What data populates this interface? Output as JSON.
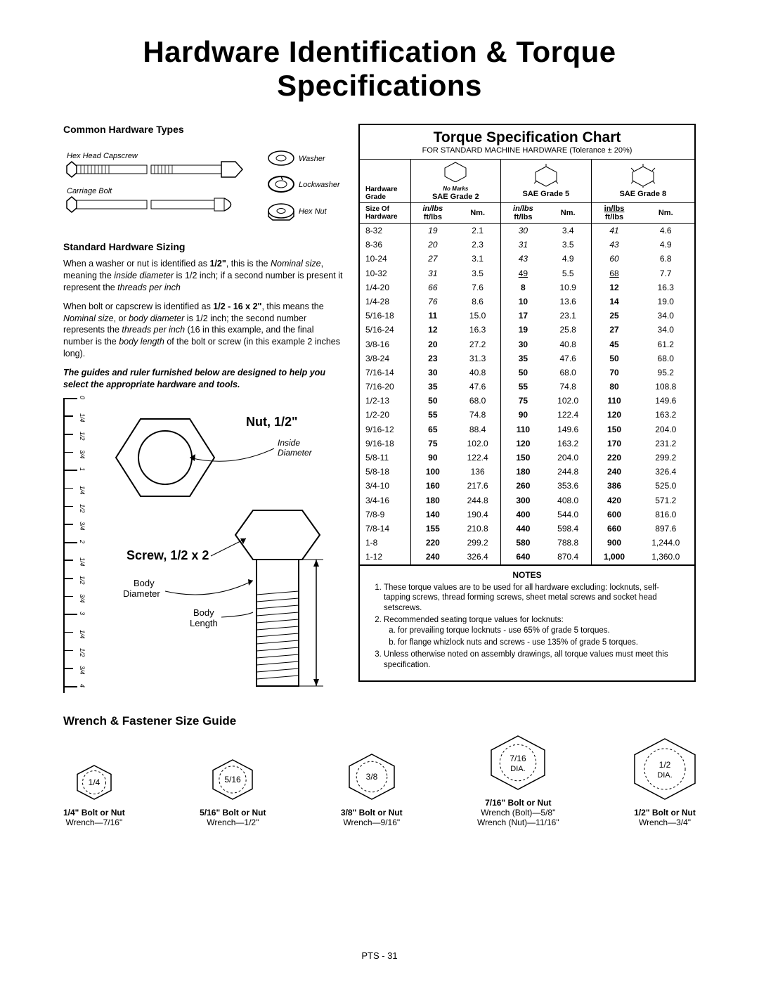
{
  "title": "Hardware Identification  &  Torque Specifications",
  "footer": "PTS - 31",
  "hwTypes": {
    "heading": "Common Hardware Types",
    "items": [
      "Hex Head Capscrew",
      "Carriage Bolt",
      "Washer",
      "Lockwasher",
      "Hex Nut"
    ]
  },
  "sizing": {
    "heading": "Standard Hardware Sizing",
    "p1_a": "When a washer or nut is identified as ",
    "p1_b": "1/2\"",
    "p1_c": ", this is the ",
    "p1_d": "Nominal size",
    "p1_e": ", meaning the ",
    "p1_f": "inside diameter",
    "p1_g": " is 1/2 inch; if a second number is present it represent the ",
    "p1_h": "threads per inch",
    "p2_a": "When bolt or capscrew is identified as ",
    "p2_b": "1/2 - 16 x 2\"",
    "p2_c": ", this means the ",
    "p2_d": "Nominal size",
    "p2_e": ", or ",
    "p2_f": "body diameter",
    "p2_g": " is 1/2 inch; the second number represents the ",
    "p2_h": "threads per inch",
    "p2_i": " (16 in this example, and the final number is the ",
    "p2_j": "body length",
    "p2_k": " of the bolt or screw (in this example 2 inches long).",
    "p3": "The guides and ruler furnished below are designed to help you select the appropriate hardware and tools."
  },
  "diagram": {
    "nutLabel": "Nut, 1/2\"",
    "insideDia": "Inside Diameter",
    "screwLabel": "Screw, 1/2 x 2",
    "bodyDia": "Body Diameter",
    "bodyLen": "Body Length",
    "ruler": [
      "0",
      "1/4",
      "1/2",
      "3/4",
      "1",
      "1/4",
      "1/2",
      "3/4",
      "2",
      "1/4",
      "1/2",
      "3/4",
      "3",
      "1/4",
      "1/2",
      "3/4",
      "4"
    ]
  },
  "torque": {
    "title": "Torque Specification Chart",
    "subtitle": "FOR STANDARD MACHINE HARDWARE (Tolerance ± 20%)",
    "gradeLabel": "Hardware Grade",
    "sizeLabel": "Size Of Hardware",
    "noMarks": "No Marks",
    "grades": [
      "SAE Grade 2",
      "SAE Grade 5",
      "SAE Grade 8"
    ],
    "unit1": "in/lbs",
    "unit2": "ft/lbs",
    "nm": "Nm.",
    "rows": [
      {
        "s": "8-32",
        "v": [
          "19",
          "2.1",
          "30",
          "3.4",
          "41",
          "4.6"
        ],
        "style": [
          "i",
          "",
          "i",
          "",
          "i",
          ""
        ]
      },
      {
        "s": "8-36",
        "v": [
          "20",
          "2.3",
          "31",
          "3.5",
          "43",
          "4.9"
        ],
        "style": [
          "i",
          "",
          "i",
          "",
          "i",
          ""
        ]
      },
      {
        "s": "10-24",
        "v": [
          "27",
          "3.1",
          "43",
          "4.9",
          "60",
          "6.8"
        ],
        "style": [
          "i",
          "",
          "i",
          "",
          "i",
          ""
        ]
      },
      {
        "s": "10-32",
        "v": [
          "31",
          "3.5",
          "49",
          "5.5",
          "68",
          "7.7"
        ],
        "style": [
          "i",
          "",
          "u",
          "",
          "u",
          ""
        ]
      },
      {
        "s": "1/4-20",
        "v": [
          "66",
          "7.6",
          "8",
          "10.9",
          "12",
          "16.3"
        ],
        "style": [
          "i",
          "",
          "b",
          "",
          "b",
          ""
        ]
      },
      {
        "s": "1/4-28",
        "v": [
          "76",
          "8.6",
          "10",
          "13.6",
          "14",
          "19.0"
        ],
        "style": [
          "i",
          "",
          "b",
          "",
          "b",
          ""
        ]
      },
      {
        "s": "5/16-18",
        "v": [
          "11",
          "15.0",
          "17",
          "23.1",
          "25",
          "34.0"
        ],
        "style": [
          "b",
          "",
          "b",
          "",
          "b",
          ""
        ]
      },
      {
        "s": "5/16-24",
        "v": [
          "12",
          "16.3",
          "19",
          "25.8",
          "27",
          "34.0"
        ],
        "style": [
          "b",
          "",
          "b",
          "",
          "b",
          ""
        ]
      },
      {
        "s": "3/8-16",
        "v": [
          "20",
          "27.2",
          "30",
          "40.8",
          "45",
          "61.2"
        ],
        "style": [
          "b",
          "",
          "b",
          "",
          "b",
          ""
        ]
      },
      {
        "s": "3/8-24",
        "v": [
          "23",
          "31.3",
          "35",
          "47.6",
          "50",
          "68.0"
        ],
        "style": [
          "b",
          "",
          "b",
          "",
          "b",
          ""
        ]
      },
      {
        "s": "7/16-14",
        "v": [
          "30",
          "40.8",
          "50",
          "68.0",
          "70",
          "95.2"
        ],
        "style": [
          "b",
          "",
          "b",
          "",
          "b",
          ""
        ]
      },
      {
        "s": "7/16-20",
        "v": [
          "35",
          "47.6",
          "55",
          "74.8",
          "80",
          "108.8"
        ],
        "style": [
          "b",
          "",
          "b",
          "",
          "b",
          ""
        ]
      },
      {
        "s": "1/2-13",
        "v": [
          "50",
          "68.0",
          "75",
          "102.0",
          "110",
          "149.6"
        ],
        "style": [
          "b",
          "",
          "b",
          "",
          "b",
          ""
        ]
      },
      {
        "s": "1/2-20",
        "v": [
          "55",
          "74.8",
          "90",
          "122.4",
          "120",
          "163.2"
        ],
        "style": [
          "b",
          "",
          "b",
          "",
          "b",
          ""
        ]
      },
      {
        "s": "9/16-12",
        "v": [
          "65",
          "88.4",
          "110",
          "149.6",
          "150",
          "204.0"
        ],
        "style": [
          "b",
          "",
          "b",
          "",
          "b",
          ""
        ]
      },
      {
        "s": "9/16-18",
        "v": [
          "75",
          "102.0",
          "120",
          "163.2",
          "170",
          "231.2"
        ],
        "style": [
          "b",
          "",
          "b",
          "",
          "b",
          ""
        ]
      },
      {
        "s": "5/8-11",
        "v": [
          "90",
          "122.4",
          "150",
          "204.0",
          "220",
          "299.2"
        ],
        "style": [
          "b",
          "",
          "b",
          "",
          "b",
          ""
        ]
      },
      {
        "s": "5/8-18",
        "v": [
          "100",
          "136",
          "180",
          "244.8",
          "240",
          "326.4"
        ],
        "style": [
          "b",
          "",
          "b",
          "",
          "b",
          ""
        ]
      },
      {
        "s": "3/4-10",
        "v": [
          "160",
          "217.6",
          "260",
          "353.6",
          "386",
          "525.0"
        ],
        "style": [
          "b",
          "",
          "b",
          "",
          "b",
          ""
        ]
      },
      {
        "s": "3/4-16",
        "v": [
          "180",
          "244.8",
          "300",
          "408.0",
          "420",
          "571.2"
        ],
        "style": [
          "b",
          "",
          "b",
          "",
          "b",
          ""
        ]
      },
      {
        "s": "7/8-9",
        "v": [
          "140",
          "190.4",
          "400",
          "544.0",
          "600",
          "816.0"
        ],
        "style": [
          "b",
          "",
          "b",
          "",
          "b",
          ""
        ]
      },
      {
        "s": "7/8-14",
        "v": [
          "155",
          "210.8",
          "440",
          "598.4",
          "660",
          "897.6"
        ],
        "style": [
          "b",
          "",
          "b",
          "",
          "b",
          ""
        ]
      },
      {
        "s": "1-8",
        "v": [
          "220",
          "299.2",
          "580",
          "788.8",
          "900",
          "1,244.0"
        ],
        "style": [
          "b",
          "",
          "b",
          "",
          "b",
          ""
        ]
      },
      {
        "s": "1-12",
        "v": [
          "240",
          "326.4",
          "640",
          "870.4",
          "1,000",
          "1,360.0"
        ],
        "style": [
          "b",
          "",
          "b",
          "",
          "b",
          ""
        ]
      }
    ],
    "notesTitle": "NOTES",
    "notes": [
      "These torque values are to be used for all hardware excluding: locknuts, self-tapping screws, thread forming screws, sheet metal screws and socket head setscrews.",
      "Recommended seating torque values for locknuts:",
      "Unless otherwise noted on assembly drawings, all torque values must meet this specification."
    ],
    "subnotes": [
      "for prevailing torque locknuts - use 65% of grade 5 torques.",
      "for flange whizlock nuts and screws - use 135% of grade 5 torques."
    ]
  },
  "wrench": {
    "title": "Wrench & Fastener Size Guide",
    "items": [
      {
        "size": 50,
        "label": "1/4",
        "bl": "1/4\" Bolt or Nut",
        "wr": "Wrench—7/16\""
      },
      {
        "size": 58,
        "label": "5/16",
        "bl": "5/16\" Bolt or Nut",
        "wr": "Wrench—1/2\""
      },
      {
        "size": 66,
        "label": "3/8",
        "bl": "3/8\" Bolt or Nut",
        "wr": "Wrench—9/16\""
      },
      {
        "size": 78,
        "label": "7/16 DIA.",
        "bl": "7/16\" Bolt or Nut",
        "wr": "Wrench (Bolt)—5/8\"",
        "wr2": "Wrench (Nut)—11/16\""
      },
      {
        "size": 88,
        "label": "1/2 DIA.",
        "bl": "1/2\" Bolt or Nut",
        "wr": "Wrench—3/4\""
      }
    ]
  }
}
